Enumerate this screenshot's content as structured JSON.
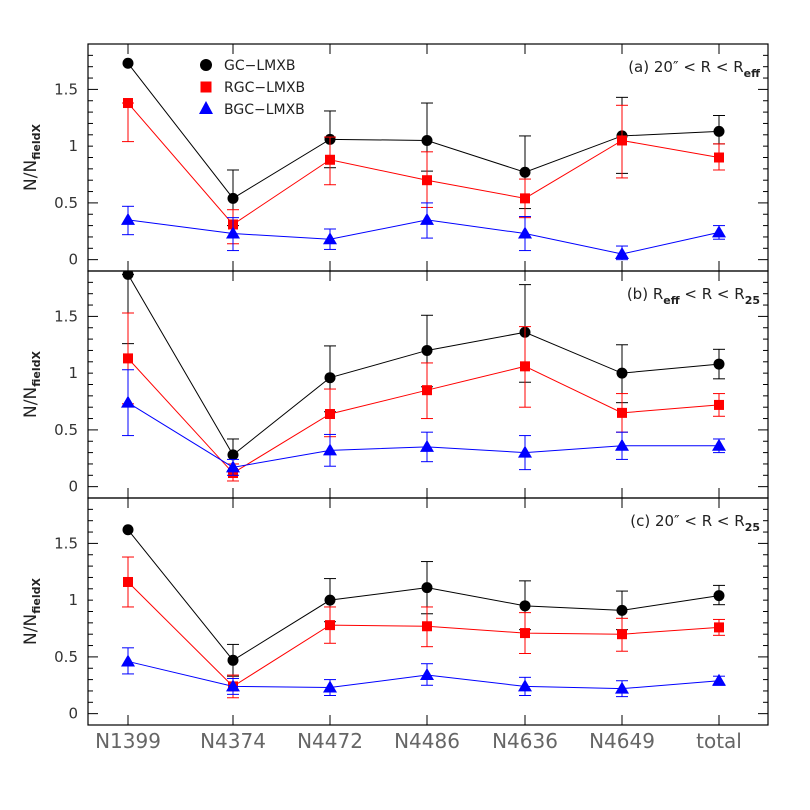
{
  "figure": {
    "ylabel_main": "N/N",
    "ylabel_sub": "fieldX"
  },
  "chart_data": [
    {
      "type": "line",
      "panel": "a",
      "label_parts": [
        "(a) 20″ < R < R",
        "eff"
      ],
      "categories": [
        "N1399",
        "N4374",
        "N4472",
        "N4486",
        "N4636",
        "N4649",
        "total"
      ],
      "ylim": [
        -0.1,
        1.9
      ],
      "yticks": [
        0,
        0.5,
        1,
        1.5
      ],
      "ytick_labels": [
        "0",
        "0.5",
        "1",
        "1.5"
      ],
      "legend": {
        "placement": "top-left",
        "entries": [
          "GC−LMXB",
          "RGC−LMXB",
          "BGC−LMXB"
        ]
      },
      "series": [
        {
          "name": "GC−LMXB",
          "color": "#000000",
          "marker": "circle",
          "values": [
            1.73,
            0.54,
            1.06,
            1.05,
            0.77,
            1.09,
            1.13
          ],
          "err_low": [
            1.73,
            0.3,
            0.81,
            0.78,
            0.45,
            0.76,
            1.02
          ],
          "err_high": [
            1.73,
            0.79,
            1.31,
            1.38,
            1.09,
            1.43,
            1.27
          ]
        },
        {
          "name": "RGC−LMXB",
          "color": "#ff0000",
          "marker": "square",
          "values": [
            1.38,
            0.31,
            0.88,
            0.7,
            0.54,
            1.05,
            0.9
          ],
          "err_low": [
            1.04,
            0.14,
            0.66,
            0.46,
            0.37,
            0.72,
            0.79
          ],
          "err_high": [
            1.38,
            0.44,
            1.08,
            0.95,
            0.71,
            1.36,
            1.02
          ]
        },
        {
          "name": "BGC−LMXB",
          "color": "#0000ff",
          "marker": "triangle",
          "values": [
            0.35,
            0.23,
            0.18,
            0.35,
            0.23,
            0.05,
            0.24
          ],
          "err_low": [
            0.22,
            0.08,
            0.09,
            0.19,
            0.08,
            0.0,
            0.18
          ],
          "err_high": [
            0.47,
            0.37,
            0.27,
            0.5,
            0.38,
            0.12,
            0.3
          ]
        }
      ]
    },
    {
      "type": "line",
      "panel": "b",
      "label_parts": [
        "(b) R",
        "eff",
        " < R < R",
        "25"
      ],
      "categories": [
        "N1399",
        "N4374",
        "N4472",
        "N4486",
        "N4636",
        "N4649",
        "total"
      ],
      "ylim": [
        -0.1,
        1.9
      ],
      "yticks": [
        0,
        0.5,
        1,
        1.5
      ],
      "ytick_labels": [
        "0",
        "0.5",
        "1",
        "1.5"
      ],
      "series": [
        {
          "name": "GC−LMXB",
          "color": "#000000",
          "marker": "circle",
          "values": [
            1.87,
            0.28,
            0.96,
            1.2,
            1.36,
            1.0,
            1.08
          ],
          "err_low": [
            1.26,
            0.14,
            0.66,
            0.88,
            0.92,
            0.74,
            0.95
          ],
          "err_high": [
            1.87,
            0.42,
            1.24,
            1.51,
            1.78,
            1.25,
            1.21
          ]
        },
        {
          "name": "RGC−LMXB",
          "color": "#ff0000",
          "marker": "square",
          "values": [
            1.13,
            0.12,
            0.64,
            0.85,
            1.06,
            0.65,
            0.72
          ],
          "err_low": [
            0.73,
            0.05,
            0.44,
            0.6,
            0.7,
            0.48,
            0.62
          ],
          "err_high": [
            1.53,
            0.2,
            0.86,
            1.09,
            1.41,
            0.82,
            0.82
          ]
        },
        {
          "name": "BGC−LMXB",
          "color": "#0000ff",
          "marker": "triangle",
          "values": [
            0.74,
            0.17,
            0.32,
            0.35,
            0.3,
            0.36,
            0.36
          ],
          "err_low": [
            0.45,
            0.1,
            0.18,
            0.22,
            0.15,
            0.24,
            0.3
          ],
          "err_high": [
            1.03,
            0.24,
            0.46,
            0.48,
            0.45,
            0.48,
            0.42
          ]
        }
      ]
    },
    {
      "type": "line",
      "panel": "c",
      "label_parts": [
        "(c) 20″ < R < R",
        "25"
      ],
      "categories": [
        "N1399",
        "N4374",
        "N4472",
        "N4486",
        "N4636",
        "N4649",
        "total"
      ],
      "ylim": [
        -0.1,
        1.9
      ],
      "yticks": [
        0,
        0.5,
        1,
        1.5
      ],
      "ytick_labels": [
        "0",
        "0.5",
        "1",
        "1.5"
      ],
      "series": [
        {
          "name": "GC−LMXB",
          "color": "#000000",
          "marker": "circle",
          "values": [
            1.62,
            0.47,
            1.0,
            1.11,
            0.95,
            0.91,
            1.04
          ],
          "err_low": [
            1.62,
            0.33,
            0.81,
            0.88,
            0.74,
            0.74,
            0.96
          ],
          "err_high": [
            1.62,
            0.61,
            1.19,
            1.34,
            1.17,
            1.08,
            1.13
          ]
        },
        {
          "name": "RGC−LMXB",
          "color": "#ff0000",
          "marker": "square",
          "values": [
            1.16,
            0.24,
            0.78,
            0.77,
            0.71,
            0.7,
            0.76
          ],
          "err_low": [
            0.94,
            0.14,
            0.62,
            0.59,
            0.53,
            0.55,
            0.69
          ],
          "err_high": [
            1.38,
            0.34,
            0.94,
            0.94,
            0.89,
            0.84,
            0.83
          ]
        },
        {
          "name": "BGC−LMXB",
          "color": "#0000ff",
          "marker": "triangle",
          "values": [
            0.46,
            0.24,
            0.23,
            0.34,
            0.24,
            0.22,
            0.29
          ],
          "err_low": [
            0.35,
            0.17,
            0.16,
            0.25,
            0.16,
            0.15,
            0.25
          ],
          "err_high": [
            0.58,
            0.31,
            0.3,
            0.44,
            0.32,
            0.29,
            0.33
          ]
        }
      ]
    }
  ]
}
